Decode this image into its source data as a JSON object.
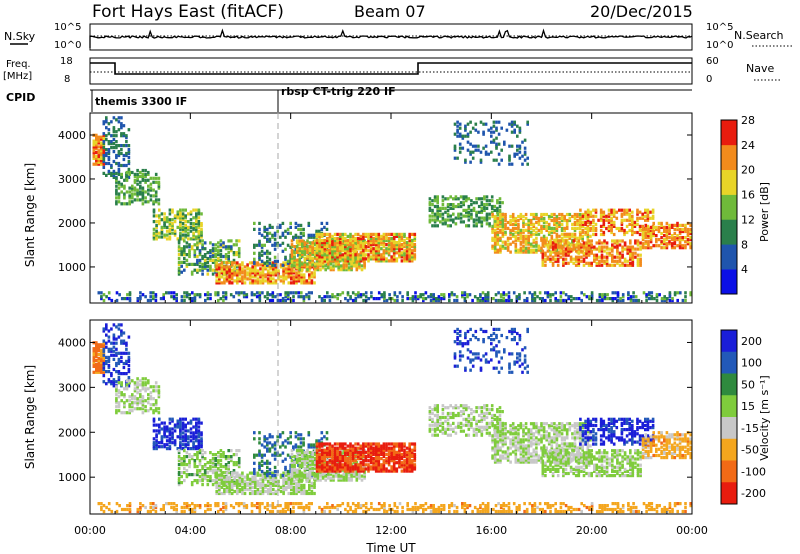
{
  "header": {
    "station": "Fort Hays East (fitACF)",
    "beam": "Beam 07",
    "date": "20/Dec/2015"
  },
  "noise_panel": {
    "left_label": "N.Sky",
    "right_label": "N.Search",
    "tick_top": "10^5",
    "tick_bottom": "10^0",
    "right_tick_top": "10^5",
    "right_tick_bottom": "10^0"
  },
  "freq_panel": {
    "left_label_1": "Freq.",
    "left_label_2": "[MHz]",
    "right_label": "Nave",
    "left_ticks": [
      "18",
      "8"
    ],
    "right_ticks": [
      "60",
      "0"
    ]
  },
  "cpid": {
    "label": "CPID",
    "modes": [
      "themis 3300 IF",
      "rbsp CT-trig 220 IF"
    ]
  },
  "chart_data": [
    {
      "type": "heatmap",
      "title": "",
      "xlabel": "",
      "ylabel": "Slant Range [km]",
      "x_range_hours": [
        0,
        24
      ],
      "y_range_km": [
        180,
        4500
      ],
      "yticks": [
        "1000",
        "2000",
        "3000",
        "4000"
      ],
      "colorbar": {
        "label": "Power [dB]",
        "ticks": [
          "4",
          "8",
          "12",
          "16",
          "20",
          "24",
          "28"
        ],
        "colors": [
          "#0b10e6",
          "#1f55ad",
          "#2a7f4b",
          "#6fba3a",
          "#e8d428",
          "#f28b1c",
          "#e81c0e"
        ]
      }
    },
    {
      "type": "heatmap",
      "title": "",
      "xlabel": "Time UT",
      "ylabel": "Slant Range [km]",
      "x_range_hours": [
        0,
        24
      ],
      "y_range_km": [
        180,
        4500
      ],
      "yticks": [
        "1000",
        "2000",
        "3000",
        "4000"
      ],
      "xticks": [
        "00:00",
        "04:00",
        "08:00",
        "12:00",
        "16:00",
        "20:00",
        "00:00"
      ],
      "colorbar": {
        "label": "Velocity [m s⁻¹]",
        "ticks": [
          "200",
          "100",
          "50",
          "15",
          "-15",
          "-50",
          "-100",
          "-200"
        ],
        "colors": [
          "#1a1ed8",
          "#2259b8",
          "#2f8a3e",
          "#7fcc3c",
          "#c8c8c8",
          "#f4a61e",
          "#f26a16",
          "#e81c0e"
        ]
      }
    }
  ]
}
